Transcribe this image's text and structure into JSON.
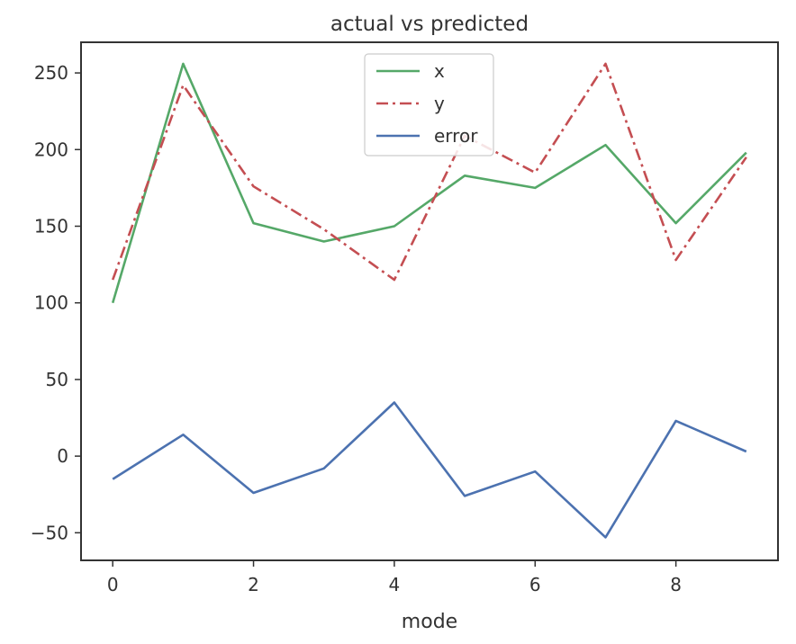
{
  "chart_data": {
    "type": "line",
    "title": "actual vs predicted",
    "xlabel": "mode",
    "ylabel": "",
    "x": [
      0,
      1,
      2,
      3,
      4,
      5,
      6,
      7,
      8,
      9
    ],
    "xlim": [
      -0.45,
      9.45
    ],
    "ylim": [
      -68,
      270
    ],
    "xticks": [
      0,
      2,
      4,
      6,
      8
    ],
    "xtick_labels": [
      "0",
      "2",
      "4",
      "6",
      "8"
    ],
    "yticks": [
      -50,
      0,
      50,
      100,
      150,
      200,
      250
    ],
    "ytick_labels": [
      "−50",
      "0",
      "50",
      "100",
      "150",
      "200",
      "250"
    ],
    "grid": false,
    "legend_position": "top-center",
    "series": [
      {
        "name": "x",
        "color": "#55a868",
        "style": "solid",
        "values": [
          100,
          256,
          152,
          140,
          150,
          183,
          175,
          203,
          152,
          198
        ]
      },
      {
        "name": "y",
        "color": "#c44e52",
        "style": "dashdot",
        "values": [
          115,
          242,
          176,
          148,
          115,
          209,
          185,
          256,
          128,
          195
        ]
      },
      {
        "name": "error",
        "color": "#4c72b0",
        "style": "solid",
        "values": [
          -15,
          14,
          -24,
          -8,
          35,
          -26,
          -10,
          -53,
          23,
          3
        ]
      }
    ]
  }
}
